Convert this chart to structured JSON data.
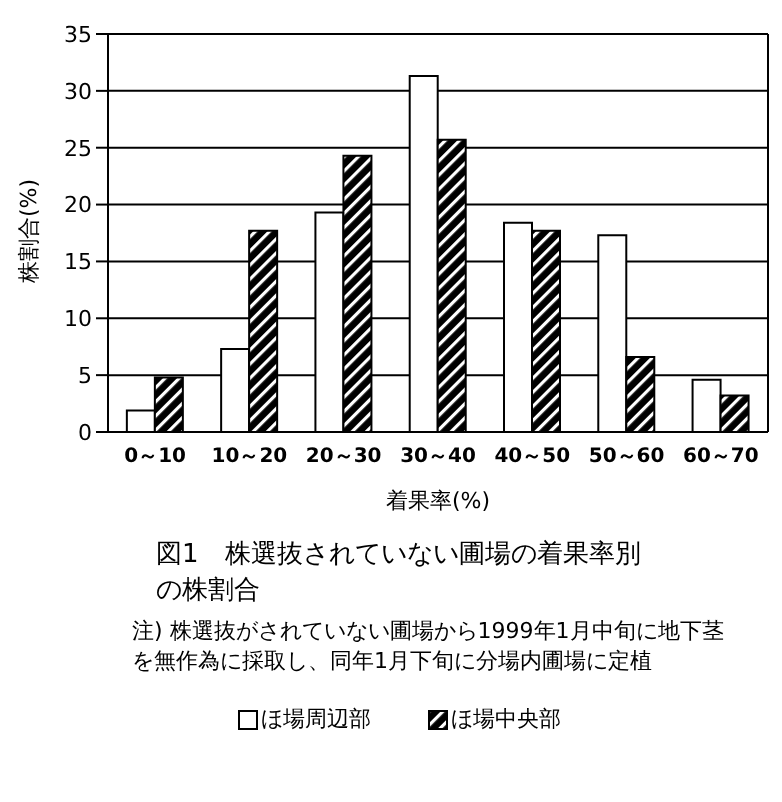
{
  "chart_data": {
    "type": "bar",
    "title": "図1　株選抜されていない圃場の着果率別の株割合",
    "xlabel": "着果率(%)",
    "ylabel": "株割合(%)",
    "categories": [
      "0～10",
      "10～20",
      "20～30",
      "30～40",
      "40～50",
      "50～60",
      "60～70"
    ],
    "series": [
      {
        "name": "ほ場周辺部",
        "color": "#ffffff",
        "values": [
          1.9,
          7.3,
          19.3,
          31.3,
          18.4,
          17.3,
          4.6
        ]
      },
      {
        "name": "ほ場中央部",
        "color": "#000000",
        "values": [
          4.8,
          17.7,
          24.3,
          25.7,
          17.7,
          6.6,
          3.2
        ]
      }
    ],
    "ylim": [
      0,
      35
    ],
    "yticks": [
      0,
      5,
      10,
      15,
      20,
      25,
      30,
      35
    ],
    "grid": "y",
    "legend": "bottom",
    "annotations": [
      "注) 株選抜がされていない圃場から1999年1月中旬に地下茎を無作為に採取し、同年1月下旬に分場内圃場に定植"
    ]
  }
}
